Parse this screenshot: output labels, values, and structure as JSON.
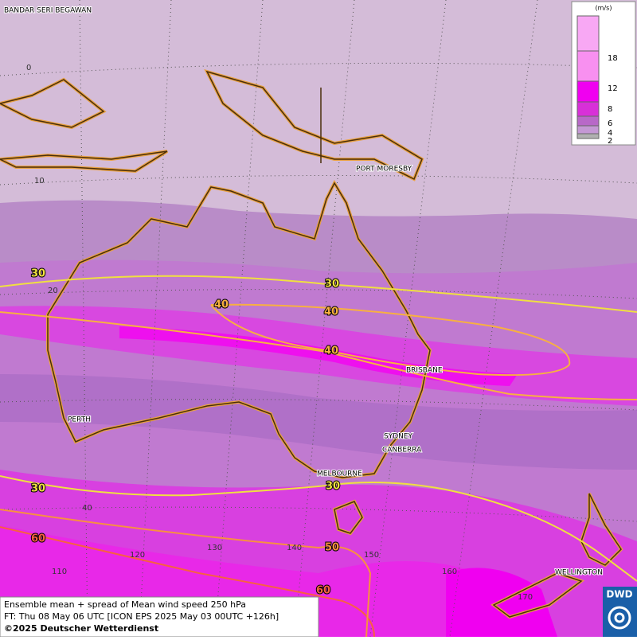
{
  "map": {
    "place_labels": [
      "BANDAR SERI BEGAWAN",
      "PORT MORESBY",
      "BRISBANE",
      "PERTH",
      "SYDNEY",
      "CANBERRA",
      "MELBOURNE",
      "WELLINGTON"
    ],
    "lat_labels": [
      0,
      10,
      20,
      40
    ],
    "lon_labels": [
      110,
      120,
      130,
      140,
      150,
      160,
      170
    ],
    "contour_labels": [
      30,
      30,
      40,
      40,
      40,
      30,
      30,
      60,
      50,
      60
    ],
    "contour_colors": {
      "30": "#f0e040",
      "40": "#f8b040",
      "50": "#f89040",
      "60": "#f86040"
    },
    "legend": {
      "unit": "(m/s)",
      "levels": [
        18,
        12,
        8,
        6,
        4,
        2
      ],
      "colors": [
        "#f890f0",
        "#f000f0",
        "#d830d8",
        "#b868c8",
        "#c498d4",
        "#b0b0b0"
      ]
    },
    "footer": [
      "Ensemble mean + spread of Mean wind speed 250 hPa",
      "FT: Thu 08 May 06 UTC [ICON EPS 2025 May 03 00UTC +126h]",
      "©2025 Deutscher Wetterdienst"
    ],
    "logo": "DWD"
  }
}
